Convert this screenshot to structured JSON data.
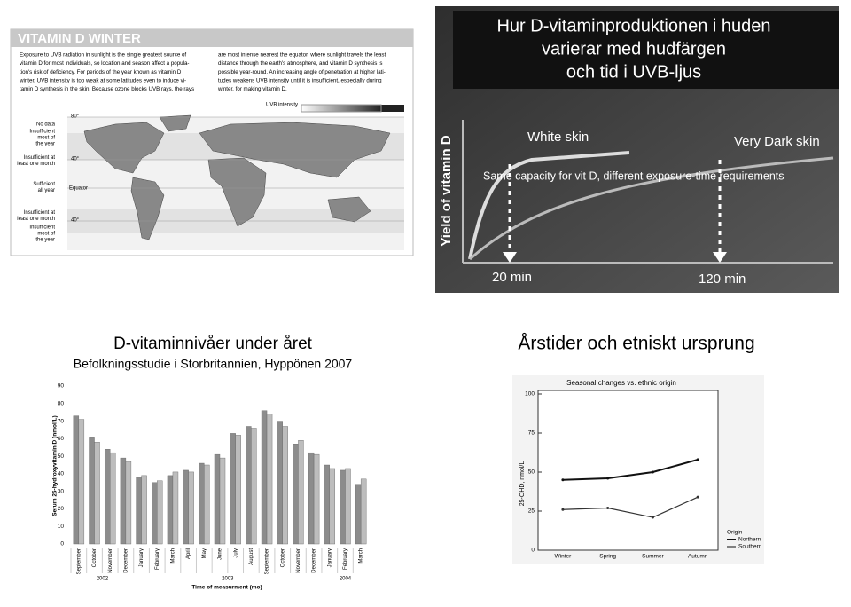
{
  "map_slide": {
    "title": "VITAMIN D WINTER",
    "text_left": [
      "Exposure to UVB radiation in sunlight is the single greatest source of",
      "vitamin D for most individuals, so location and season affect a popula-",
      "tion's risk of deficiency. For periods of the year known as vitamin D",
      "winter, UVB intensity is too weak at some latitudes even to induce vi-",
      "tamin D synthesis in the skin. Because ozone blocks UVB rays, the rays"
    ],
    "text_right": [
      "are most intense nearest the equator, where sunlight travels the least",
      "distance through the earth's atmosphere, and vitamin D synthesis is",
      "possible year-round. An increasing angle of penetration at higher lati-",
      "tudes weakens UVB intensity until it is insufficient, especially during",
      "winter, for making vitamin D."
    ],
    "scale_label": "UVB intensity",
    "legend": [
      [
        "No data"
      ],
      [
        "Insufficient",
        "most of",
        "the year"
      ],
      [
        "Insufficient at",
        "least one month"
      ],
      [
        "Sufficient",
        "all year"
      ],
      [
        "Insufficient at",
        "least one month"
      ],
      [
        "Insufficient",
        "most of",
        "the year"
      ]
    ],
    "latitudes": [
      "80°",
      "40°",
      "Equator",
      "40°"
    ]
  },
  "skin_slide": {
    "title": [
      "Hur D-vitaminproduktionen i huden",
      "varierar med hudfärgen",
      "och tid i UVB-ljus"
    ],
    "y_label": "Yield of vitamin D",
    "curves": [
      "White skin",
      "Very Dark skin"
    ],
    "note": "Same capacity for vit D, different exposure-time requirements",
    "times": [
      "20 min",
      "120 min"
    ]
  },
  "chart_data": [
    {
      "type": "bar",
      "title": "D-vitaminnivåer under året",
      "subtitle": "Befolkningsstudie i Storbritannien, Hyppönen 2007",
      "categories": [
        "September",
        "October",
        "November",
        "December",
        "January",
        "February",
        "March",
        "April",
        "May",
        "June",
        "July",
        "August",
        "September",
        "October",
        "November",
        "December",
        "January",
        "February",
        "March"
      ],
      "series": [
        {
          "color": "#8c8c8c",
          "values": [
            73,
            61,
            54,
            49,
            38,
            35,
            39,
            42,
            46,
            51,
            63,
            67,
            76,
            70,
            57,
            52,
            45,
            42,
            34
          ]
        },
        {
          "color": "#bdbdbd",
          "values": [
            71,
            58,
            52,
            47,
            39,
            36,
            41,
            41,
            45,
            49,
            62,
            66,
            74,
            67,
            59,
            51,
            43,
            43,
            37
          ]
        }
      ],
      "years": [
        "2002",
        "2003",
        "2004"
      ],
      "y_label": "Serum 25-hydroxyvitamin D (nmol/L)",
      "x_label": "Time of measurment (mo)",
      "ylim": [
        0,
        90
      ],
      "yticks": [
        0,
        10,
        20,
        30,
        40,
        50,
        60,
        70,
        80,
        90
      ]
    },
    {
      "type": "line",
      "title": "Årstider och etniskt ursprung",
      "chart_title": "Seasonal changes vs. ethnic origin",
      "categories": [
        "Winter",
        "Spring",
        "Summer",
        "Autumn"
      ],
      "series": [
        {
          "name": "Northern",
          "color": "#111111",
          "values": [
            45,
            46,
            50,
            58
          ]
        },
        {
          "name": "Southern",
          "color": "#333333",
          "values": [
            26,
            27,
            21,
            34
          ]
        }
      ],
      "legend_title": "Origin",
      "y_label": "25-OHD, nmol/L",
      "ylim": [
        0,
        100
      ],
      "yticks": [
        0,
        25,
        50,
        75,
        100
      ]
    }
  ]
}
